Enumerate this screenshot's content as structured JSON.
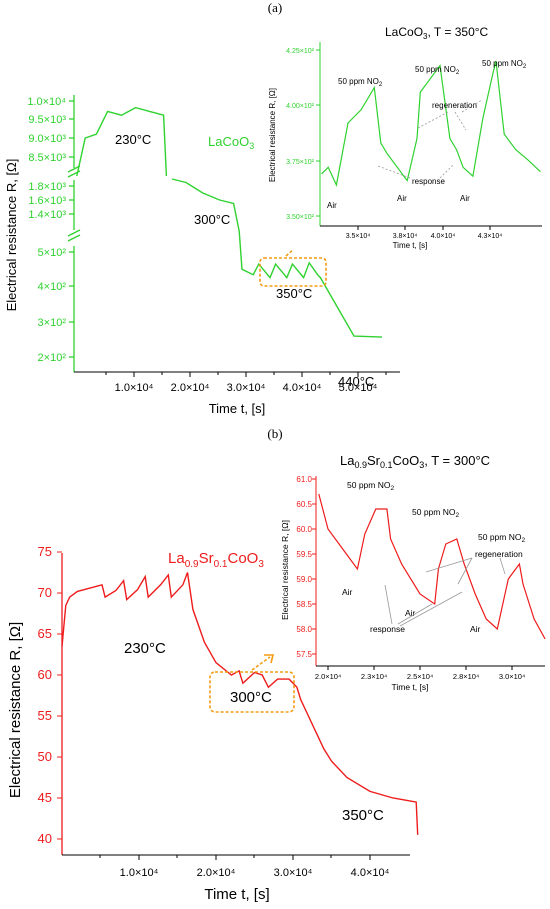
{
  "figure": {
    "panel_a_label": "(a)",
    "panel_b_label": "(b)"
  },
  "panel_a": {
    "material_label": "LaCoO3",
    "xlabel": "Time t, [s]",
    "ylabel": "Electrical resistance R, [Ω]",
    "x_tick_labels": [
      "1.0×10⁴",
      "2.0×10⁴",
      "3.0×10⁴",
      "4.0×10⁴",
      "5.0×10⁴"
    ],
    "y_tick_labels_top": [
      "8.5×10³",
      "9.0×10³",
      "9.5×10³",
      "1.0×10⁴"
    ],
    "y_tick_labels_mid": [
      "1.4×10³",
      "1.6×10³",
      "1.8×10³"
    ],
    "y_tick_labels_low": [
      "2×10²",
      "3×10²",
      "4×10²",
      "5×10²"
    ],
    "temperature_labels": [
      "230°C",
      "300°C",
      "350°C",
      "440°C"
    ],
    "color": "#2fd22f",
    "highlight_color": "#f39c12",
    "inset": {
      "title": "LaCoO3, T = 350°C",
      "xlabel": "Time t, [s]",
      "ylabel": "Electrical resistance R, [Ω]",
      "x_tick_labels": [
        "3.5×10⁴",
        "3.8×10⁴",
        "4.0×10⁴",
        "4.3×10⁴"
      ],
      "y_tick_labels": [
        "3.50×10²",
        "3.75×10²",
        "4.00×10²",
        "4.25×10²"
      ],
      "annotations": [
        "50 ppm NO2",
        "50 ppm NO2",
        "50 ppm NO2",
        "Air",
        "Air",
        "Air",
        "regeneration",
        "response"
      ]
    }
  },
  "panel_b": {
    "material_label": "La0.9Sr0.1CoO3",
    "xlabel": "Time t, [s]",
    "ylabel": "Electrical resistance R, [Ω]",
    "x_tick_labels": [
      "1.0×10⁴",
      "2.0×10⁴",
      "3.0×10⁴",
      "4.0×10⁴"
    ],
    "y_tick_labels": [
      "40",
      "45",
      "50",
      "55",
      "60",
      "65",
      "70",
      "75"
    ],
    "temperature_labels": [
      "230°C",
      "300°C",
      "350°C"
    ],
    "color": "#ee1c1c",
    "highlight_color": "#f39c12",
    "inset": {
      "title": "La0.9Sr0.1CoO3, T = 300°C",
      "xlabel": "Time t, [s]",
      "ylabel": "Electrical resistance R, [Ω]",
      "x_tick_labels": [
        "2.0×10⁴",
        "2.3×10⁴",
        "2.5×10⁴",
        "2.8×10⁴",
        "3.0×10⁴"
      ],
      "y_tick_labels": [
        "57.5",
        "58.0",
        "58.5",
        "59.0",
        "59.5",
        "60.0",
        "60.5",
        "61.0"
      ],
      "annotations": [
        "50 ppm NO2",
        "50 ppm NO2",
        "50 ppm NO2",
        "Air",
        "Air",
        "Air",
        "regeneration",
        "response"
      ]
    }
  },
  "chart_data": [
    {
      "type": "line",
      "title": "",
      "xlabel": "Time t, [s]",
      "ylabel": "Electrical resistance R, [Ω]",
      "y_scale": "broken (three segments)",
      "xlim": [
        0,
        56000
      ],
      "series": [
        {
          "x": [
            500,
            2000,
            4000,
            6000,
            8500,
            11000,
            13500,
            16000,
            16500,
            17500,
            20000,
            23000,
            26000,
            28500,
            29500,
            30000,
            32000,
            33000,
            35000,
            36000,
            38000,
            39000,
            41000,
            42000,
            43500,
            44000,
            50000,
            55000
          ],
          "y": [
            8000,
            9000,
            9100,
            9700,
            9600,
            9800,
            9700,
            9600,
            8000,
            1900,
            1850,
            1700,
            1600,
            1550,
            600,
            430,
            410,
            450,
            400,
            450,
            400,
            450,
            400,
            455,
            410,
            400,
            240,
            238
          ]
        }
      ]
    },
    {
      "type": "line",
      "title": "",
      "xlabel": "Time t, [s]",
      "ylabel": "Electrical resistance R, [Ω]",
      "ylim": [
        40,
        75
      ],
      "xlim": [
        0,
        47000
      ],
      "series": [
        {
          "x": [
            0,
            500,
            1000,
            2000,
            4000,
            5200,
            5600,
            7000,
            8000,
            8400,
            9800,
            10800,
            11200,
            12800,
            13800,
            14200,
            15700,
            16300,
            17000,
            18500,
            20000,
            22000,
            23000,
            23500,
            25000,
            26000,
            26800,
            28000,
            29500,
            30500,
            31000,
            32000,
            33000,
            34000,
            35000,
            37000,
            40000,
            43000,
            46000,
            46200
          ],
          "y": [
            63.5,
            68.5,
            69.5,
            70.2,
            70.7,
            71.0,
            69.5,
            70.3,
            71.5,
            69.2,
            70.4,
            72.0,
            69.5,
            71.0,
            72.2,
            69.5,
            71.0,
            72.5,
            68.0,
            64.0,
            61.5,
            60.0,
            60.5,
            59.0,
            60.3,
            60.0,
            58.5,
            59.5,
            59.5,
            58.5,
            57.0,
            55.0,
            53.0,
            51.0,
            49.5,
            47.5,
            45.8,
            45.0,
            44.5,
            40.5
          ]
        }
      ]
    },
    {
      "type": "line",
      "title": "LaCoO3, T = 350°C",
      "xlabel": "Time t, [s]",
      "ylabel": "Electrical resistance R, [Ω]",
      "ylim": [
        350,
        430
      ],
      "xlim": [
        32500,
        46000
      ],
      "series": [
        {
          "x": [
            32600,
            33000,
            33500,
            34200,
            35000,
            35800,
            36200,
            36600,
            37200,
            37800,
            38400,
            38600,
            39200,
            39800,
            40400,
            40800,
            41200,
            41800,
            42400,
            43000,
            43200,
            43700,
            44400,
            45200,
            45900
          ],
          "y": [
            369,
            372,
            364,
            392,
            398,
            408,
            383,
            378,
            372,
            366,
            385,
            406,
            412,
            418,
            385,
            380,
            372,
            368,
            394,
            414,
            420,
            387,
            380,
            375,
            370
          ]
        }
      ]
    },
    {
      "type": "line",
      "title": "La0.9Sr0.1CoO3, T = 300°C",
      "xlabel": "Time t, [s]",
      "ylabel": "Electrical resistance R, [Ω]",
      "ylim": [
        57.5,
        61.0
      ],
      "xlim": [
        19500,
        32000
      ],
      "series": [
        {
          "x": [
            19500,
            20000,
            21000,
            21600,
            22000,
            22600,
            23200,
            23400,
            24000,
            25000,
            25800,
            26000,
            26400,
            27000,
            27400,
            28000,
            28600,
            29200,
            29800,
            30400,
            30600,
            31200,
            31800
          ],
          "y": [
            60.7,
            60.0,
            59.5,
            59.2,
            59.9,
            60.4,
            60.4,
            59.8,
            59.3,
            58.7,
            58.5,
            59.2,
            59.7,
            59.8,
            59.3,
            58.7,
            58.2,
            58.0,
            59.0,
            59.3,
            58.9,
            58.2,
            57.8
          ]
        }
      ]
    }
  ]
}
